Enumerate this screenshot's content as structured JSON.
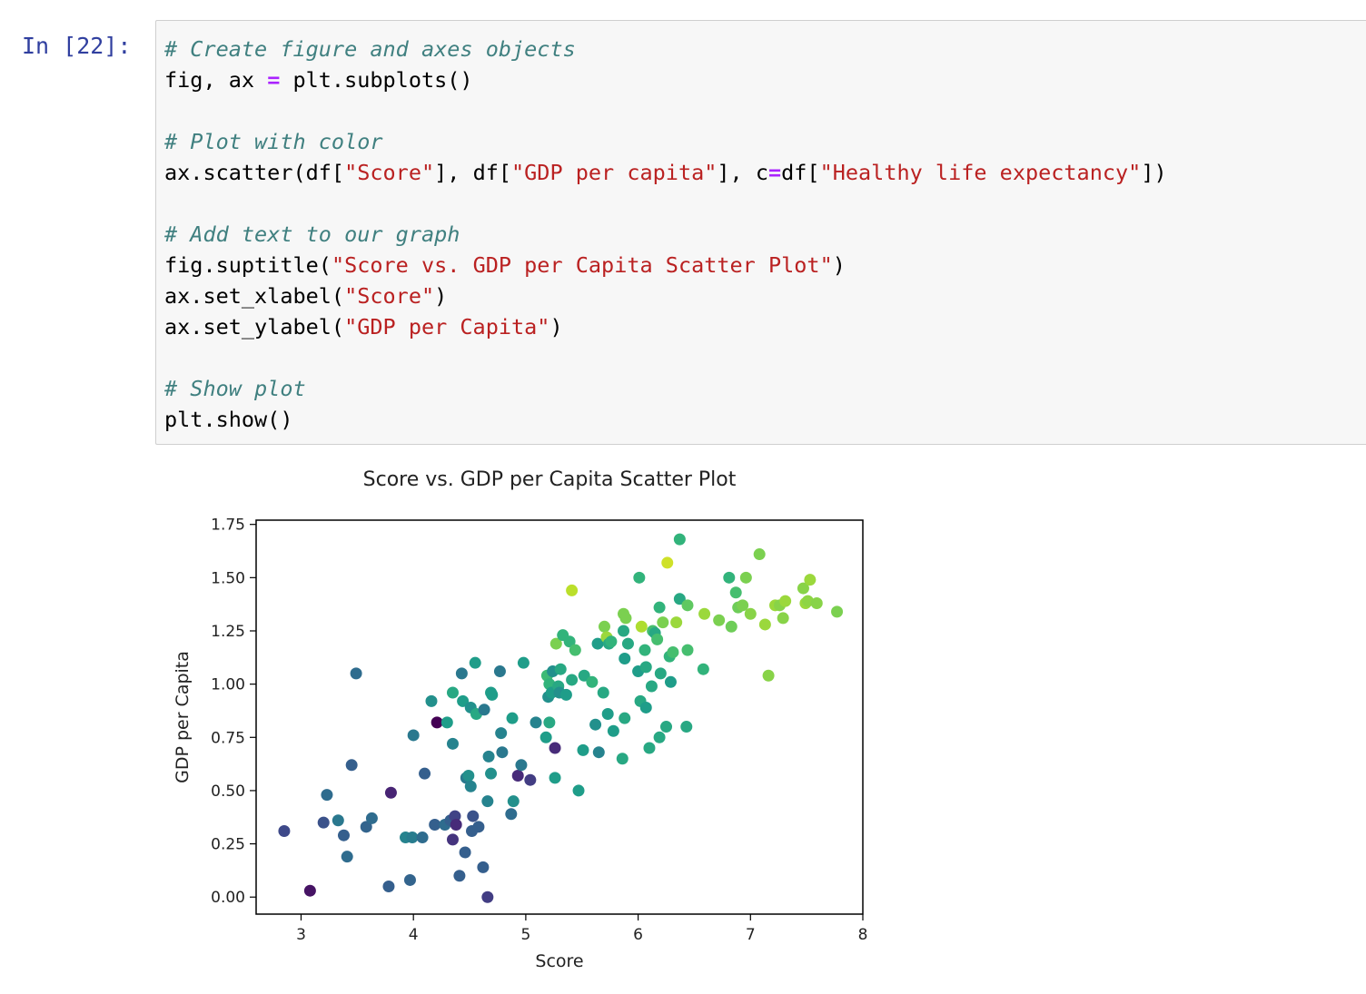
{
  "cell": {
    "prompt": "In [22]:",
    "code": {
      "line1": {
        "comment": "# Create figure and axes objects"
      },
      "line2": {
        "a": "fig, ax ",
        "op": "=",
        "b": " plt.subplots()"
      },
      "line4": {
        "comment": "# Plot with color"
      },
      "line5": {
        "a": "ax.scatter(df[",
        "s1": "\"Score\"",
        "b": "], df[",
        "s2": "\"GDP per capita\"",
        "c": "], c",
        "op": "=",
        "d": "df[",
        "s3": "\"Healthy life expectancy\"",
        "e": "])"
      },
      "line7": {
        "comment": "# Add text to our graph"
      },
      "line8": {
        "a": "fig.suptitle(",
        "s": "\"Score vs. GDP per Capita Scatter Plot\"",
        "b": ")"
      },
      "line9": {
        "a": "ax.set_xlabel(",
        "s": "\"Score\"",
        "b": ")"
      },
      "line10": {
        "a": "ax.set_ylabel(",
        "s": "\"GDP per Capita\"",
        "b": ")"
      },
      "line12": {
        "comment": "# Show plot"
      },
      "line13": {
        "a": "plt.show()"
      }
    }
  },
  "colors": {
    "prompt": "#303f9f",
    "comment": "#408080",
    "string": "#ba2121",
    "operator": "#aa22ff",
    "colormap": "viridis"
  },
  "chart_data": {
    "type": "scatter",
    "title": "Score vs. GDP per Capita Scatter Plot",
    "xlabel": "Score",
    "ylabel": "GDP per Capita",
    "xlim": [
      2.6,
      8.0
    ],
    "ylim": [
      -0.08,
      1.77
    ],
    "xticks": [
      3,
      4,
      5,
      6,
      7,
      8
    ],
    "yticks": [
      0.0,
      0.25,
      0.5,
      0.75,
      1.0,
      1.25,
      1.5,
      1.75
    ],
    "ytick_labels": [
      "0.00",
      "0.25",
      "0.50",
      "0.75",
      "1.00",
      "1.25",
      "1.50",
      "1.75"
    ],
    "grid": false,
    "color_note": "points colored by Healthy life expectancy (viridis colormap), value scaled 0–1",
    "points": [
      {
        "x": 2.85,
        "y": 0.31,
        "c": 0.22
      },
      {
        "x": 3.08,
        "y": 0.03,
        "c": 0.05
      },
      {
        "x": 3.2,
        "y": 0.35,
        "c": 0.25
      },
      {
        "x": 3.23,
        "y": 0.48,
        "c": 0.35
      },
      {
        "x": 3.33,
        "y": 0.36,
        "c": 0.4
      },
      {
        "x": 3.38,
        "y": 0.29,
        "c": 0.3
      },
      {
        "x": 3.41,
        "y": 0.19,
        "c": 0.35
      },
      {
        "x": 3.45,
        "y": 0.62,
        "c": 0.3
      },
      {
        "x": 3.49,
        "y": 1.05,
        "c": 0.35
      },
      {
        "x": 3.58,
        "y": 0.33,
        "c": 0.32
      },
      {
        "x": 3.63,
        "y": 0.37,
        "c": 0.35
      },
      {
        "x": 3.78,
        "y": 0.05,
        "c": 0.3
      },
      {
        "x": 3.8,
        "y": 0.49,
        "c": 0.1
      },
      {
        "x": 3.93,
        "y": 0.28,
        "c": 0.45
      },
      {
        "x": 3.97,
        "y": 0.08,
        "c": 0.32
      },
      {
        "x": 3.99,
        "y": 0.28,
        "c": 0.42
      },
      {
        "x": 4.0,
        "y": 0.76,
        "c": 0.4
      },
      {
        "x": 4.08,
        "y": 0.28,
        "c": 0.35
      },
      {
        "x": 4.1,
        "y": 0.58,
        "c": 0.3
      },
      {
        "x": 4.16,
        "y": 0.92,
        "c": 0.5
      },
      {
        "x": 4.19,
        "y": 0.34,
        "c": 0.3
      },
      {
        "x": 4.21,
        "y": 0.82,
        "c": 0.0
      },
      {
        "x": 4.28,
        "y": 0.34,
        "c": 0.35
      },
      {
        "x": 4.3,
        "y": 0.82,
        "c": 0.55
      },
      {
        "x": 4.33,
        "y": 0.36,
        "c": 0.3
      },
      {
        "x": 4.35,
        "y": 0.72,
        "c": 0.45
      },
      {
        "x": 4.35,
        "y": 0.96,
        "c": 0.6
      },
      {
        "x": 4.35,
        "y": 0.27,
        "c": 0.15
      },
      {
        "x": 4.37,
        "y": 0.38,
        "c": 0.2
      },
      {
        "x": 4.38,
        "y": 0.34,
        "c": 0.12
      },
      {
        "x": 4.41,
        "y": 0.1,
        "c": 0.3
      },
      {
        "x": 4.43,
        "y": 1.05,
        "c": 0.4
      },
      {
        "x": 4.44,
        "y": 0.92,
        "c": 0.55
      },
      {
        "x": 4.46,
        "y": 0.21,
        "c": 0.3
      },
      {
        "x": 4.47,
        "y": 0.56,
        "c": 0.4
      },
      {
        "x": 4.49,
        "y": 0.57,
        "c": 0.5
      },
      {
        "x": 4.51,
        "y": 0.52,
        "c": 0.45
      },
      {
        "x": 4.51,
        "y": 0.89,
        "c": 0.5
      },
      {
        "x": 4.52,
        "y": 0.31,
        "c": 0.3
      },
      {
        "x": 4.53,
        "y": 0.38,
        "c": 0.25
      },
      {
        "x": 4.55,
        "y": 1.1,
        "c": 0.55
      },
      {
        "x": 4.56,
        "y": 0.86,
        "c": 0.6
      },
      {
        "x": 4.58,
        "y": 0.33,
        "c": 0.3
      },
      {
        "x": 4.62,
        "y": 0.14,
        "c": 0.3
      },
      {
        "x": 4.63,
        "y": 0.88,
        "c": 0.4
      },
      {
        "x": 4.66,
        "y": 0.45,
        "c": 0.45
      },
      {
        "x": 4.66,
        "y": 0.0,
        "c": 0.18
      },
      {
        "x": 4.67,
        "y": 0.66,
        "c": 0.45
      },
      {
        "x": 4.69,
        "y": 0.96,
        "c": 0.55
      },
      {
        "x": 4.69,
        "y": 0.58,
        "c": 0.5
      },
      {
        "x": 4.7,
        "y": 0.95,
        "c": 0.55
      },
      {
        "x": 4.77,
        "y": 1.06,
        "c": 0.4
      },
      {
        "x": 4.78,
        "y": 0.77,
        "c": 0.45
      },
      {
        "x": 4.79,
        "y": 0.68,
        "c": 0.4
      },
      {
        "x": 4.87,
        "y": 0.39,
        "c": 0.35
      },
      {
        "x": 4.88,
        "y": 0.84,
        "c": 0.55
      },
      {
        "x": 4.89,
        "y": 0.45,
        "c": 0.5
      },
      {
        "x": 4.93,
        "y": 0.57,
        "c": 0.12
      },
      {
        "x": 4.96,
        "y": 0.62,
        "c": 0.4
      },
      {
        "x": 4.98,
        "y": 1.1,
        "c": 0.55
      },
      {
        "x": 5.04,
        "y": 0.55,
        "c": 0.18
      },
      {
        "x": 5.09,
        "y": 0.82,
        "c": 0.45
      },
      {
        "x": 5.18,
        "y": 0.75,
        "c": 0.55
      },
      {
        "x": 5.19,
        "y": 1.04,
        "c": 0.68
      },
      {
        "x": 5.2,
        "y": 0.94,
        "c": 0.5
      },
      {
        "x": 5.21,
        "y": 0.82,
        "c": 0.6
      },
      {
        "x": 5.21,
        "y": 1.0,
        "c": 0.65
      },
      {
        "x": 5.23,
        "y": 0.96,
        "c": 0.55
      },
      {
        "x": 5.24,
        "y": 1.06,
        "c": 0.5
      },
      {
        "x": 5.26,
        "y": 0.7,
        "c": 0.12
      },
      {
        "x": 5.26,
        "y": 0.56,
        "c": 0.55
      },
      {
        "x": 5.27,
        "y": 1.19,
        "c": 0.8
      },
      {
        "x": 5.29,
        "y": 0.99,
        "c": 0.6
      },
      {
        "x": 5.3,
        "y": 0.96,
        "c": 0.5
      },
      {
        "x": 5.31,
        "y": 1.07,
        "c": 0.6
      },
      {
        "x": 5.33,
        "y": 1.23,
        "c": 0.65
      },
      {
        "x": 5.36,
        "y": 0.95,
        "c": 0.55
      },
      {
        "x": 5.39,
        "y": 1.2,
        "c": 0.65
      },
      {
        "x": 5.41,
        "y": 1.02,
        "c": 0.6
      },
      {
        "x": 5.41,
        "y": 1.44,
        "c": 0.9
      },
      {
        "x": 5.44,
        "y": 1.16,
        "c": 0.7
      },
      {
        "x": 5.47,
        "y": 0.5,
        "c": 0.55
      },
      {
        "x": 5.51,
        "y": 0.69,
        "c": 0.55
      },
      {
        "x": 5.52,
        "y": 1.04,
        "c": 0.6
      },
      {
        "x": 5.59,
        "y": 1.01,
        "c": 0.65
      },
      {
        "x": 5.62,
        "y": 0.81,
        "c": 0.5
      },
      {
        "x": 5.64,
        "y": 1.19,
        "c": 0.55
      },
      {
        "x": 5.65,
        "y": 0.68,
        "c": 0.45
      },
      {
        "x": 5.69,
        "y": 0.96,
        "c": 0.6
      },
      {
        "x": 5.7,
        "y": 1.27,
        "c": 0.8
      },
      {
        "x": 5.72,
        "y": 1.22,
        "c": 0.85
      },
      {
        "x": 5.73,
        "y": 0.86,
        "c": 0.55
      },
      {
        "x": 5.74,
        "y": 1.19,
        "c": 0.6
      },
      {
        "x": 5.76,
        "y": 1.2,
        "c": 0.65
      },
      {
        "x": 5.78,
        "y": 0.78,
        "c": 0.55
      },
      {
        "x": 5.86,
        "y": 0.65,
        "c": 0.6
      },
      {
        "x": 5.87,
        "y": 1.33,
        "c": 0.8
      },
      {
        "x": 5.87,
        "y": 1.25,
        "c": 0.6
      },
      {
        "x": 5.88,
        "y": 1.12,
        "c": 0.55
      },
      {
        "x": 5.88,
        "y": 0.84,
        "c": 0.6
      },
      {
        "x": 5.89,
        "y": 1.31,
        "c": 0.8
      },
      {
        "x": 5.91,
        "y": 1.19,
        "c": 0.6
      },
      {
        "x": 6.0,
        "y": 1.06,
        "c": 0.55
      },
      {
        "x": 6.01,
        "y": 1.5,
        "c": 0.65
      },
      {
        "x": 6.02,
        "y": 0.92,
        "c": 0.6
      },
      {
        "x": 6.03,
        "y": 1.27,
        "c": 0.88
      },
      {
        "x": 6.06,
        "y": 1.16,
        "c": 0.65
      },
      {
        "x": 6.07,
        "y": 1.08,
        "c": 0.6
      },
      {
        "x": 6.07,
        "y": 0.89,
        "c": 0.55
      },
      {
        "x": 6.1,
        "y": 0.7,
        "c": 0.6
      },
      {
        "x": 6.12,
        "y": 0.99,
        "c": 0.6
      },
      {
        "x": 6.13,
        "y": 1.25,
        "c": 0.7
      },
      {
        "x": 6.15,
        "y": 1.24,
        "c": 0.6
      },
      {
        "x": 6.17,
        "y": 1.21,
        "c": 0.7
      },
      {
        "x": 6.19,
        "y": 1.36,
        "c": 0.65
      },
      {
        "x": 6.19,
        "y": 0.75,
        "c": 0.6
      },
      {
        "x": 6.2,
        "y": 1.05,
        "c": 0.6
      },
      {
        "x": 6.22,
        "y": 1.29,
        "c": 0.8
      },
      {
        "x": 6.25,
        "y": 0.8,
        "c": 0.6
      },
      {
        "x": 6.26,
        "y": 1.57,
        "c": 0.93
      },
      {
        "x": 6.28,
        "y": 1.13,
        "c": 0.65
      },
      {
        "x": 6.29,
        "y": 1.01,
        "c": 0.55
      },
      {
        "x": 6.31,
        "y": 1.15,
        "c": 0.7
      },
      {
        "x": 6.34,
        "y": 1.29,
        "c": 0.85
      },
      {
        "x": 6.37,
        "y": 1.4,
        "c": 0.6
      },
      {
        "x": 6.37,
        "y": 1.68,
        "c": 0.65
      },
      {
        "x": 6.43,
        "y": 0.8,
        "c": 0.6
      },
      {
        "x": 6.44,
        "y": 1.37,
        "c": 0.75
      },
      {
        "x": 6.44,
        "y": 1.16,
        "c": 0.7
      },
      {
        "x": 6.58,
        "y": 1.07,
        "c": 0.65
      },
      {
        "x": 6.59,
        "y": 1.33,
        "c": 0.85
      },
      {
        "x": 6.72,
        "y": 1.3,
        "c": 0.8
      },
      {
        "x": 6.81,
        "y": 1.5,
        "c": 0.65
      },
      {
        "x": 6.83,
        "y": 1.27,
        "c": 0.78
      },
      {
        "x": 6.87,
        "y": 1.43,
        "c": 0.7
      },
      {
        "x": 6.89,
        "y": 1.36,
        "c": 0.78
      },
      {
        "x": 6.93,
        "y": 1.37,
        "c": 0.8
      },
      {
        "x": 6.96,
        "y": 1.5,
        "c": 0.8
      },
      {
        "x": 7.0,
        "y": 1.33,
        "c": 0.82
      },
      {
        "x": 7.08,
        "y": 1.61,
        "c": 0.8
      },
      {
        "x": 7.13,
        "y": 1.28,
        "c": 0.85
      },
      {
        "x": 7.16,
        "y": 1.04,
        "c": 0.82
      },
      {
        "x": 7.22,
        "y": 1.37,
        "c": 0.85
      },
      {
        "x": 7.26,
        "y": 1.37,
        "c": 0.82
      },
      {
        "x": 7.29,
        "y": 1.31,
        "c": 0.82
      },
      {
        "x": 7.31,
        "y": 1.39,
        "c": 0.85
      },
      {
        "x": 7.47,
        "y": 1.45,
        "c": 0.82
      },
      {
        "x": 7.49,
        "y": 1.38,
        "c": 0.85
      },
      {
        "x": 7.51,
        "y": 1.39,
        "c": 0.83
      },
      {
        "x": 7.53,
        "y": 1.49,
        "c": 0.85
      },
      {
        "x": 7.59,
        "y": 1.38,
        "c": 0.82
      },
      {
        "x": 7.77,
        "y": 1.34,
        "c": 0.8
      }
    ]
  }
}
